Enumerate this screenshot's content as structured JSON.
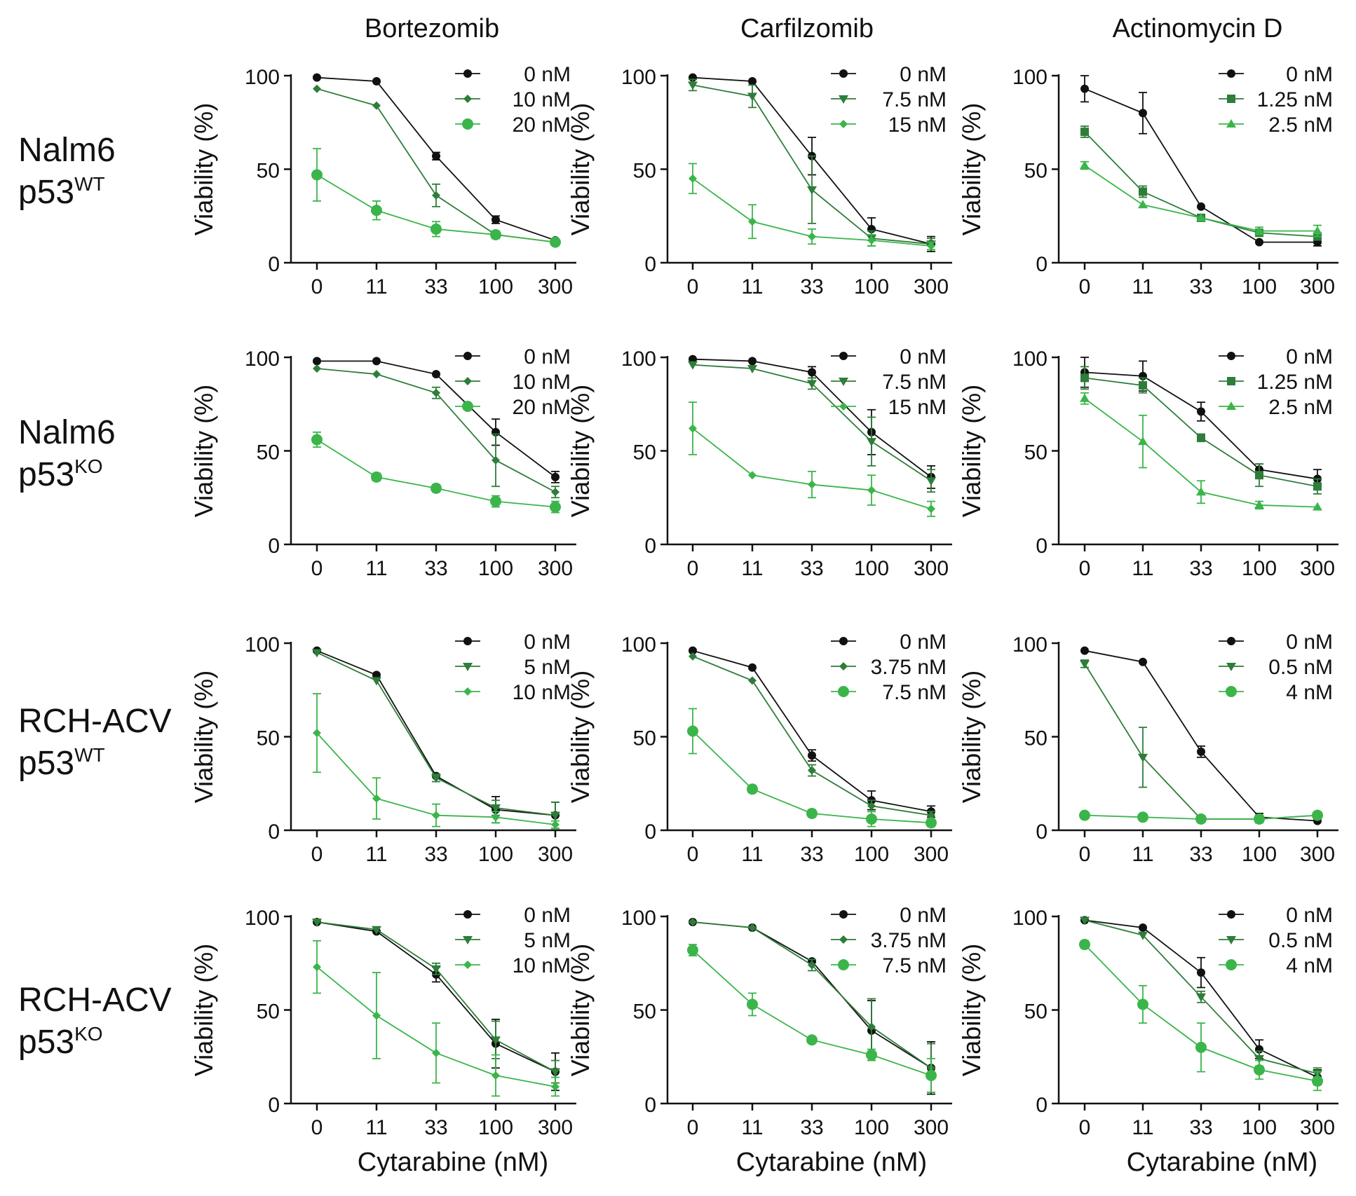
{
  "col_titles": [
    "Bortezomib",
    "Carfilzomib",
    "Actinomycin D"
  ],
  "row_labels": [
    {
      "name": "Nalm6",
      "p53": "p53",
      "sup": "WT"
    },
    {
      "name": "Nalm6",
      "p53": "p53",
      "sup": "KO"
    },
    {
      "name": "RCH-ACV",
      "p53": "p53",
      "sup": "WT"
    },
    {
      "name": "RCH-ACV",
      "p53": "p53",
      "sup": "KO"
    }
  ],
  "xlabel": "Cytarabine (nM)",
  "ylabel": "Viability (%)",
  "colors": {
    "black": "#111111",
    "dark_green": "#2e7d3a",
    "mid_green": "#1f8a3c",
    "light_green": "#3bb54a"
  },
  "chart_data": [
    {
      "type": "line",
      "row": 0,
      "col": 0,
      "categories": [
        "0",
        "11",
        "33",
        "100",
        "300"
      ],
      "ylim": [
        0,
        100
      ],
      "yticks": [
        0,
        50,
        100
      ],
      "series": [
        {
          "name": "0 nM",
          "marker": "circle",
          "color": "#111111",
          "values": [
            99,
            97,
            57,
            23,
            12
          ],
          "errors": [
            1,
            1,
            2,
            2,
            1
          ]
        },
        {
          "name": "10 nM",
          "marker": "diamond",
          "color": "#2e7d3a",
          "values": [
            93,
            84,
            36,
            15,
            11
          ],
          "errors": [
            1,
            1,
            6,
            2,
            1
          ]
        },
        {
          "name": "20 nM",
          "marker": "circle-lg",
          "color": "#3bb54a",
          "values": [
            47,
            28,
            18,
            15,
            11
          ],
          "errors": [
            14,
            5,
            4,
            2,
            1
          ]
        }
      ]
    },
    {
      "type": "line",
      "row": 0,
      "col": 1,
      "categories": [
        "0",
        "11",
        "33",
        "100",
        "300"
      ],
      "ylim": [
        0,
        100
      ],
      "yticks": [
        0,
        50,
        100
      ],
      "series": [
        {
          "name": "0 nM",
          "marker": "circle",
          "color": "#111111",
          "values": [
            99,
            97,
            57,
            18,
            10
          ],
          "errors": [
            1,
            1,
            10,
            6,
            4
          ]
        },
        {
          "name": "7.5 nM",
          "marker": "triangle-down",
          "color": "#2e7d3a",
          "values": [
            95,
            89,
            39,
            13,
            10
          ],
          "errors": [
            3,
            6,
            18,
            4,
            3
          ]
        },
        {
          "name": "15 nM",
          "marker": "diamond",
          "color": "#3bb54a",
          "values": [
            45,
            22,
            14,
            12,
            9
          ],
          "errors": [
            8,
            9,
            4,
            3,
            2
          ]
        }
      ]
    },
    {
      "type": "line",
      "row": 0,
      "col": 2,
      "categories": [
        "0",
        "11",
        "33",
        "100",
        "300"
      ],
      "ylim": [
        0,
        100
      ],
      "yticks": [
        0,
        50,
        100
      ],
      "series": [
        {
          "name": "0 nM",
          "marker": "circle",
          "color": "#111111",
          "values": [
            93,
            80,
            30,
            11,
            11
          ],
          "errors": [
            7,
            11,
            1,
            1,
            2
          ]
        },
        {
          "name": "1.25 nM",
          "marker": "square",
          "color": "#2e7d3a",
          "values": [
            70,
            38,
            24,
            16,
            14
          ],
          "errors": [
            3,
            3,
            1,
            1,
            1
          ]
        },
        {
          "name": "2.5 nM",
          "marker": "triangle-up",
          "color": "#3bb54a",
          "values": [
            52,
            31,
            24,
            17,
            17
          ],
          "errors": [
            2,
            1,
            1,
            2,
            3
          ]
        }
      ]
    },
    {
      "type": "line",
      "row": 1,
      "col": 0,
      "categories": [
        "0",
        "11",
        "33",
        "100",
        "300"
      ],
      "ylim": [
        0,
        100
      ],
      "yticks": [
        0,
        50,
        100
      ],
      "series": [
        {
          "name": "0 nM",
          "marker": "circle",
          "color": "#111111",
          "values": [
            98,
            98,
            91,
            60,
            36
          ],
          "errors": [
            1,
            1,
            1,
            7,
            3
          ]
        },
        {
          "name": "10 nM",
          "marker": "diamond",
          "color": "#2e7d3a",
          "values": [
            94,
            91,
            81,
            45,
            28
          ],
          "errors": [
            1,
            1,
            3,
            14,
            3
          ]
        },
        {
          "name": "20 nM",
          "marker": "circle-lg",
          "color": "#3bb54a",
          "values": [
            56,
            36,
            30,
            23,
            20
          ],
          "errors": [
            4,
            2,
            2,
            3,
            3
          ]
        }
      ]
    },
    {
      "type": "line",
      "row": 1,
      "col": 1,
      "categories": [
        "0",
        "11",
        "33",
        "100",
        "300"
      ],
      "ylim": [
        0,
        100
      ],
      "yticks": [
        0,
        50,
        100
      ],
      "series": [
        {
          "name": "0 nM",
          "marker": "circle",
          "color": "#111111",
          "values": [
            99,
            98,
            92,
            60,
            36
          ],
          "errors": [
            1,
            1,
            3,
            12,
            6
          ]
        },
        {
          "name": "7.5 nM",
          "marker": "triangle-down",
          "color": "#2e7d3a",
          "values": [
            96,
            94,
            86,
            55,
            34
          ],
          "errors": [
            1,
            1,
            3,
            13,
            6
          ]
        },
        {
          "name": "15 nM",
          "marker": "diamond",
          "color": "#3bb54a",
          "values": [
            62,
            37,
            32,
            29,
            19
          ],
          "errors": [
            14,
            1,
            7,
            8,
            4
          ]
        }
      ]
    },
    {
      "type": "line",
      "row": 1,
      "col": 2,
      "categories": [
        "0",
        "11",
        "33",
        "100",
        "300"
      ],
      "ylim": [
        0,
        100
      ],
      "yticks": [
        0,
        50,
        100
      ],
      "series": [
        {
          "name": "0 nM",
          "marker": "circle",
          "color": "#111111",
          "values": [
            92,
            90,
            71,
            40,
            35
          ],
          "errors": [
            8,
            8,
            5,
            3,
            5
          ]
        },
        {
          "name": "1.25 nM",
          "marker": "square",
          "color": "#2e7d3a",
          "values": [
            89,
            85,
            57,
            37,
            31
          ],
          "errors": [
            6,
            4,
            2,
            6,
            4
          ]
        },
        {
          "name": "2.5 nM",
          "marker": "triangle-up",
          "color": "#3bb54a",
          "values": [
            78,
            55,
            28,
            21,
            20
          ],
          "errors": [
            3,
            14,
            6,
            2,
            1
          ]
        }
      ]
    },
    {
      "type": "line",
      "row": 2,
      "col": 0,
      "categories": [
        "0",
        "11",
        "33",
        "100",
        "300"
      ],
      "ylim": [
        0,
        100
      ],
      "yticks": [
        0,
        50,
        100
      ],
      "series": [
        {
          "name": "0 nM",
          "marker": "circle",
          "color": "#111111",
          "values": [
            96,
            83,
            29,
            11,
            8
          ],
          "errors": [
            1,
            1,
            1,
            7,
            7
          ]
        },
        {
          "name": "5 nM",
          "marker": "triangle-down",
          "color": "#2e7d3a",
          "values": [
            95,
            80,
            28,
            12,
            8
          ],
          "errors": [
            1,
            1,
            2,
            4,
            7
          ]
        },
        {
          "name": "10 nM",
          "marker": "diamond",
          "color": "#3bb54a",
          "values": [
            52,
            17,
            8,
            7,
            3
          ],
          "errors": [
            21,
            11,
            6,
            3,
            2
          ]
        }
      ]
    },
    {
      "type": "line",
      "row": 2,
      "col": 1,
      "categories": [
        "0",
        "11",
        "33",
        "100",
        "300"
      ],
      "ylim": [
        0,
        100
      ],
      "yticks": [
        0,
        50,
        100
      ],
      "series": [
        {
          "name": "0 nM",
          "marker": "circle",
          "color": "#111111",
          "values": [
            96,
            87,
            40,
            16,
            10
          ],
          "errors": [
            1,
            1,
            3,
            5,
            3
          ]
        },
        {
          "name": "3.75 nM",
          "marker": "diamond",
          "color": "#2e7d3a",
          "values": [
            93,
            80,
            32,
            13,
            8
          ],
          "errors": [
            1,
            1,
            3,
            3,
            2
          ]
        },
        {
          "name": "7.5 nM",
          "marker": "circle-lg",
          "color": "#3bb54a",
          "values": [
            53,
            22,
            9,
            6,
            4
          ],
          "errors": [
            12,
            2,
            2,
            4,
            2
          ]
        }
      ]
    },
    {
      "type": "line",
      "row": 2,
      "col": 2,
      "categories": [
        "0",
        "11",
        "33",
        "100",
        "300"
      ],
      "ylim": [
        0,
        100
      ],
      "yticks": [
        0,
        50,
        100
      ],
      "series": [
        {
          "name": "0 nM",
          "marker": "circle",
          "color": "#111111",
          "values": [
            96,
            90,
            42,
            7,
            5
          ],
          "errors": [
            1,
            1,
            3,
            2,
            1
          ]
        },
        {
          "name": "0.5 nM",
          "marker": "triangle-down",
          "color": "#2e7d3a",
          "values": [
            89,
            39,
            6,
            6,
            8
          ],
          "errors": [
            2,
            16,
            1,
            2,
            1
          ]
        },
        {
          "name": "4 nM",
          "marker": "circle-lg",
          "color": "#3bb54a",
          "values": [
            8,
            7,
            6,
            6,
            8
          ],
          "errors": [
            1,
            1,
            1,
            1,
            1
          ]
        }
      ]
    },
    {
      "type": "line",
      "row": 3,
      "col": 0,
      "categories": [
        "0",
        "11",
        "33",
        "100",
        "300"
      ],
      "ylim": [
        0,
        100
      ],
      "yticks": [
        0,
        50,
        100
      ],
      "series": [
        {
          "name": "0 nM",
          "marker": "circle",
          "color": "#111111",
          "values": [
            97,
            92,
            69,
            32,
            17
          ],
          "errors": [
            1,
            1,
            4,
            13,
            10
          ]
        },
        {
          "name": "5 nM",
          "marker": "triangle-down",
          "color": "#2e7d3a",
          "values": [
            97,
            93,
            72,
            34,
            17
          ],
          "errors": [
            1,
            1,
            3,
            10,
            6
          ]
        },
        {
          "name": "10 nM",
          "marker": "diamond",
          "color": "#3bb54a",
          "values": [
            73,
            47,
            27,
            15,
            9
          ],
          "errors": [
            14,
            23,
            16,
            11,
            5
          ]
        }
      ]
    },
    {
      "type": "line",
      "row": 3,
      "col": 1,
      "categories": [
        "0",
        "11",
        "33",
        "100",
        "300"
      ],
      "ylim": [
        0,
        100
      ],
      "yticks": [
        0,
        50,
        100
      ],
      "series": [
        {
          "name": "0 nM",
          "marker": "circle",
          "color": "#111111",
          "values": [
            97,
            94,
            76,
            39,
            19
          ],
          "errors": [
            1,
            1,
            1,
            16,
            14
          ]
        },
        {
          "name": "3.75 nM",
          "marker": "diamond",
          "color": "#2e7d3a",
          "values": [
            97,
            94,
            74,
            41,
            19
          ],
          "errors": [
            1,
            1,
            3,
            15,
            13
          ]
        },
        {
          "name": "7.5 nM",
          "marker": "circle-lg",
          "color": "#3bb54a",
          "values": [
            82,
            53,
            34,
            26,
            15
          ],
          "errors": [
            3,
            6,
            1,
            3,
            9
          ]
        }
      ]
    },
    {
      "type": "line",
      "row": 3,
      "col": 2,
      "categories": [
        "0",
        "11",
        "33",
        "100",
        "300"
      ],
      "ylim": [
        0,
        100
      ],
      "yticks": [
        0,
        50,
        100
      ],
      "series": [
        {
          "name": "0 nM",
          "marker": "circle",
          "color": "#111111",
          "values": [
            98,
            94,
            70,
            29,
            14
          ],
          "errors": [
            1,
            1,
            8,
            5,
            4
          ]
        },
        {
          "name": "0.5 nM",
          "marker": "triangle-down",
          "color": "#2e7d3a",
          "values": [
            98,
            90,
            57,
            24,
            16
          ],
          "errors": [
            1,
            1,
            3,
            4,
            3
          ]
        },
        {
          "name": "4 nM",
          "marker": "circle-lg",
          "color": "#3bb54a",
          "values": [
            85,
            53,
            30,
            18,
            12
          ],
          "errors": [
            2,
            10,
            13,
            5,
            5
          ]
        }
      ]
    }
  ]
}
